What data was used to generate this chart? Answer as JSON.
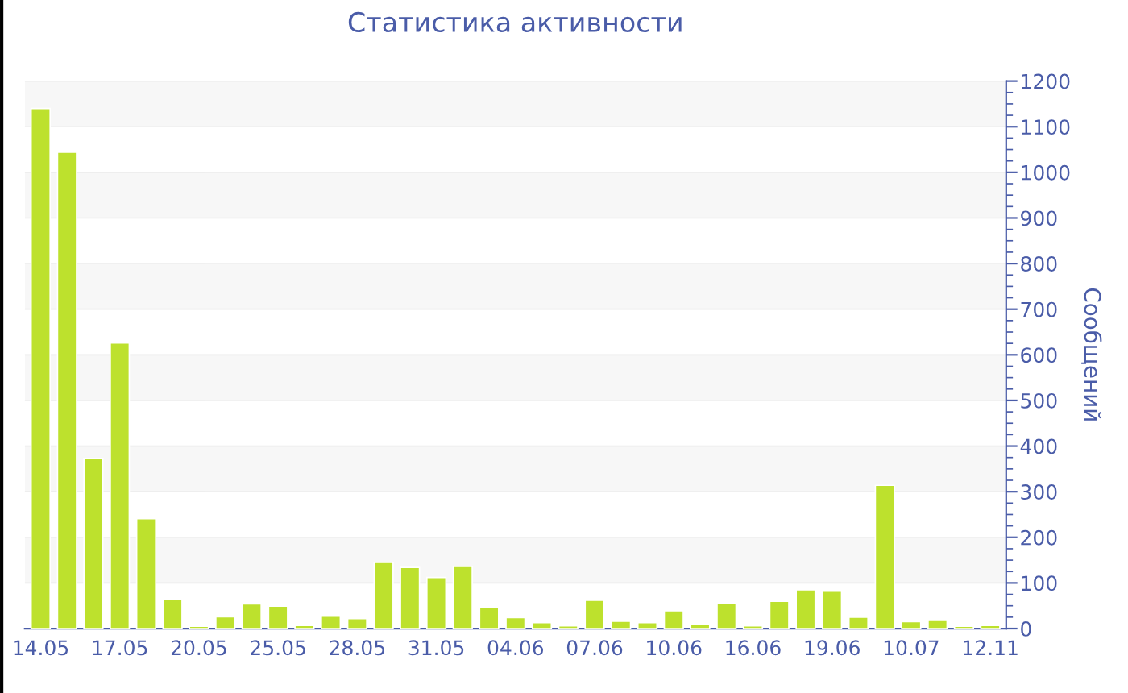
{
  "chart_data": {
    "type": "bar",
    "title": "Статистика активности",
    "ylabel": "Сообщений",
    "categories": [
      "14.05",
      null,
      null,
      "17.05",
      null,
      null,
      "20.05",
      null,
      null,
      "25.05",
      null,
      null,
      "28.05",
      null,
      null,
      "31.05",
      null,
      null,
      "04.06",
      null,
      null,
      "07.06",
      null,
      null,
      "10.06",
      null,
      null,
      "16.06",
      null,
      null,
      "19.06",
      null,
      null,
      "10.07",
      null,
      null,
      "12.11"
    ],
    "values": [
      1140,
      1044,
      373,
      626,
      241,
      65,
      5,
      26,
      54,
      49,
      7,
      27,
      22,
      145,
      134,
      112,
      136,
      47,
      24,
      13,
      6,
      62,
      16,
      13,
      39,
      9,
      55,
      6,
      60,
      85,
      82,
      25,
      314,
      15,
      18,
      5,
      7
    ],
    "color": "#bde12d",
    "ylim": [
      0,
      1200
    ],
    "yticks": [
      0,
      100,
      200,
      300,
      400,
      500,
      600,
      700,
      800,
      900,
      1000,
      1100,
      1200
    ],
    "grid": "y"
  }
}
